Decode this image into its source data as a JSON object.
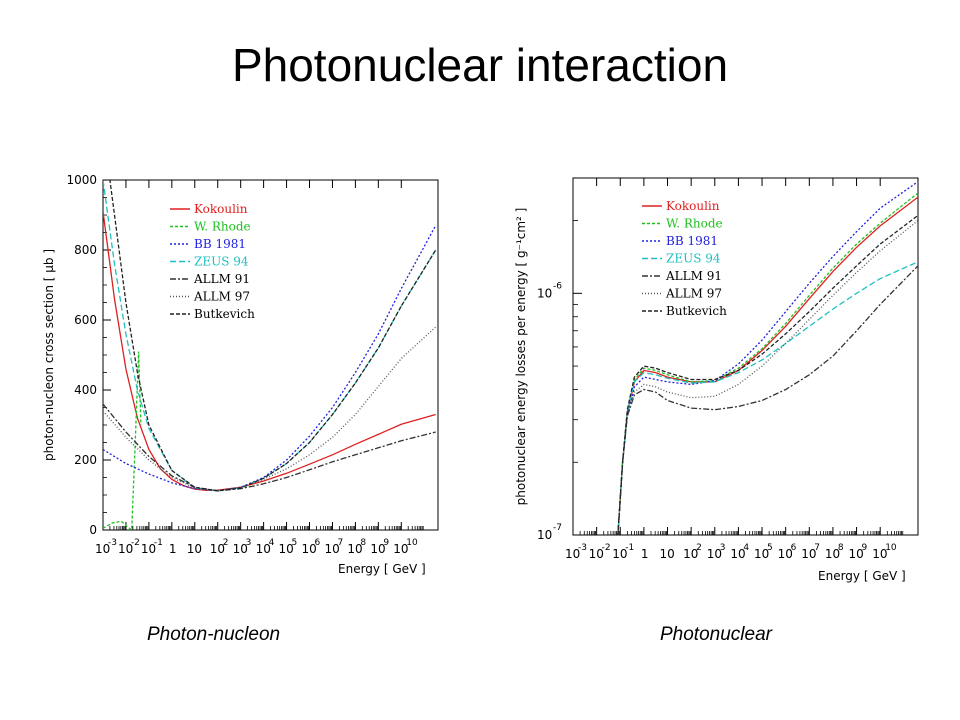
{
  "slide": {
    "title": "Photonuclear interaction",
    "captions": [
      "Photon-nucleon",
      "Photonuclear"
    ]
  },
  "chart_data": [
    {
      "type": "line",
      "title": "",
      "xlabel": "Energy [ GeV ]",
      "ylabel": "photon-nucleon cross section [ μb ]",
      "x_scale": "log",
      "xlim": [
        -3,
        11.6
      ],
      "ylim": [
        0,
        1000
      ],
      "grid": false,
      "legend_position": "top-left",
      "x_ticks": [
        "-3",
        "-2",
        "-1",
        "0",
        "1",
        "2",
        "3",
        "4",
        "5",
        "6",
        "7",
        "8",
        "9",
        "10"
      ],
      "y_ticks": [
        "0",
        "200",
        "400",
        "600",
        "800",
        "1000"
      ],
      "series": [
        {
          "name": "Kokoulin",
          "color": "#e02020",
          "dash": "",
          "x": [
            -3,
            -2.5,
            -2,
            -1.5,
            -1,
            -0.5,
            0,
            0.5,
            1,
            1.5,
            2,
            3,
            4,
            5,
            6,
            7,
            8,
            9,
            10,
            11.5
          ],
          "y": [
            910,
            660,
            460,
            320,
            230,
            175,
            145,
            127,
            117,
            113,
            114,
            122,
            140,
            162,
            188,
            215,
            245,
            273,
            302,
            330
          ]
        },
        {
          "name": "W. Rhode",
          "color": "#20c020",
          "dash": "3,2",
          "x": [
            -3,
            -2.6,
            -2.2,
            -1.95,
            -1.75,
            -1.6,
            -1.45,
            -1.35
          ],
          "y": [
            5,
            20,
            25,
            10,
            0,
            240,
            510,
            300
          ]
        },
        {
          "name": "BB 1981",
          "color": "#2020e0",
          "dash": "2,2",
          "x": [
            -3,
            -2,
            -1,
            0,
            1,
            2,
            3,
            4,
            5,
            6,
            7,
            8,
            9,
            10,
            11.5
          ],
          "y": [
            230,
            190,
            160,
            135,
            118,
            112,
            122,
            150,
            200,
            268,
            350,
            450,
            560,
            690,
            870
          ]
        },
        {
          "name": "ZEUS 94",
          "color": "#20c0c0",
          "dash": "6,3",
          "x": [
            -3,
            -2.5,
            -2,
            -1.5,
            -1,
            0,
            1,
            2,
            3,
            4,
            5,
            6,
            7,
            8,
            9,
            10,
            11.5
          ],
          "y": [
            1000,
            760,
            560,
            400,
            290,
            170,
            120,
            112,
            120,
            148,
            190,
            250,
            330,
            420,
            520,
            640,
            800
          ]
        },
        {
          "name": "ALLM 91",
          "color": "#333333",
          "dash": "6,2,2,2",
          "x": [
            -3,
            -2,
            -1,
            0,
            1,
            2,
            3,
            4,
            5,
            6,
            7,
            8,
            9,
            10,
            11.5
          ],
          "y": [
            360,
            280,
            210,
            155,
            122,
            112,
            118,
            132,
            150,
            172,
            195,
            215,
            235,
            255,
            280
          ]
        },
        {
          "name": "ALLM 97",
          "color": "#555555",
          "dash": "1,2",
          "x": [
            -3,
            -2,
            -1,
            0,
            1,
            2,
            3,
            4,
            5,
            6,
            7,
            8,
            9,
            10,
            11.5
          ],
          "y": [
            340,
            265,
            200,
            150,
            120,
            112,
            122,
            145,
            175,
            215,
            265,
            330,
            410,
            490,
            580
          ]
        },
        {
          "name": "Butkevich",
          "color": "#222222",
          "dash": "4,2",
          "x": [
            -3,
            -2.7,
            -2.5,
            -2,
            -1.5,
            -1,
            0,
            1,
            2,
            3,
            4,
            5,
            6,
            7,
            8,
            9,
            10,
            11.5
          ],
          "y": [
            1000,
            1000,
            900,
            650,
            450,
            300,
            170,
            122,
            112,
            120,
            148,
            190,
            250,
            330,
            420,
            520,
            640,
            800
          ]
        }
      ]
    },
    {
      "type": "line",
      "title": "",
      "xlabel": "Energy [ GeV ]",
      "ylabel": "photonuclear energy losses per energy [ g⁻¹cm² ]",
      "x_scale": "log",
      "y_scale": "log",
      "xlim": [
        -3,
        11.6
      ],
      "ylim": [
        1e-07,
        3e-06
      ],
      "grid": false,
      "legend_position": "top-left",
      "x_ticks": [
        "-3",
        "-2",
        "-1",
        "0",
        "1",
        "2",
        "3",
        "4",
        "5",
        "6",
        "7",
        "8",
        "9",
        "10"
      ],
      "y_ticks": [
        "10⁻⁷",
        "10⁻⁶"
      ],
      "series": [
        {
          "name": "Kokoulin",
          "color": "#e02020",
          "dash": "",
          "x": [
            -1.1,
            -0.9,
            -0.7,
            -0.4,
            0,
            0.5,
            1,
            2,
            3,
            4,
            5,
            6,
            7,
            8,
            9,
            10,
            11.6
          ],
          "y": [
            1e-07,
            2e-07,
            3.2e-07,
            4.3e-07,
            4.8e-07,
            4.7e-07,
            4.5e-07,
            4.3e-07,
            4.3e-07,
            4.8e-07,
            5.8e-07,
            7.3e-07,
            9.5e-07,
            1.23e-06,
            1.55e-06,
            1.9e-06,
            2.5e-06
          ]
        },
        {
          "name": "W. Rhode",
          "color": "#20c020",
          "dash": "3,2",
          "x": [
            -1.1,
            -0.9,
            -0.7,
            -0.4,
            0,
            0.5,
            1,
            2,
            3,
            4,
            5,
            6,
            7,
            8,
            9,
            10,
            11.6
          ],
          "y": [
            1e-07,
            2e-07,
            3.2e-07,
            4.4e-07,
            4.9e-07,
            4.8e-07,
            4.6e-07,
            4.3e-07,
            4.35e-07,
            4.9e-07,
            5.9e-07,
            7.5e-07,
            9.8e-07,
            1.27e-06,
            1.6e-06,
            1.95e-06,
            2.6e-06
          ]
        },
        {
          "name": "BB 1981",
          "color": "#2020e0",
          "dash": "2,2",
          "x": [
            -1.1,
            -0.9,
            -0.7,
            -0.4,
            0,
            0.5,
            1,
            2,
            3,
            4,
            5,
            6,
            7,
            8,
            9,
            10,
            11.6
          ],
          "y": [
            1e-07,
            2e-07,
            3.1e-07,
            4.1e-07,
            4.5e-07,
            4.4e-07,
            4.3e-07,
            4.2e-07,
            4.35e-07,
            5.1e-07,
            6.4e-07,
            8.4e-07,
            1.1e-06,
            1.42e-06,
            1.8e-06,
            2.25e-06,
            2.9e-06
          ]
        },
        {
          "name": "ZEUS 94",
          "color": "#20c0c0",
          "dash": "6,3",
          "x": [
            -1.1,
            -0.9,
            -0.7,
            -0.4,
            0,
            0.5,
            1,
            2,
            3,
            4,
            5,
            6,
            7,
            8,
            9,
            10,
            11.6
          ],
          "y": [
            1e-07,
            2e-07,
            3.2e-07,
            4.3e-07,
            4.7e-07,
            4.6e-07,
            4.45e-07,
            4.25e-07,
            4.3e-07,
            4.7e-07,
            5.3e-07,
            6.2e-07,
            7.3e-07,
            8.6e-07,
            1e-06,
            1.15e-06,
            1.35e-06
          ]
        },
        {
          "name": "ALLM 91",
          "color": "#333333",
          "dash": "6,2,2,2",
          "x": [
            -1.1,
            -0.9,
            -0.7,
            -0.4,
            0,
            0.5,
            1,
            2,
            3,
            4,
            5,
            6,
            7,
            8,
            9,
            10,
            11.6
          ],
          "y": [
            1e-07,
            2e-07,
            3.1e-07,
            3.8e-07,
            4e-07,
            3.9e-07,
            3.6e-07,
            3.35e-07,
            3.3e-07,
            3.4e-07,
            3.6e-07,
            4e-07,
            4.6e-07,
            5.5e-07,
            7e-07,
            9e-07,
            1.3e-06
          ]
        },
        {
          "name": "ALLM 97",
          "color": "#555555",
          "dash": "1,2",
          "x": [
            -1.1,
            -0.9,
            -0.7,
            -0.4,
            0,
            0.5,
            1,
            2,
            3,
            4,
            5,
            6,
            7,
            8,
            9,
            10,
            11.6
          ],
          "y": [
            1e-07,
            2e-07,
            3.1e-07,
            3.9e-07,
            4.2e-07,
            4.1e-07,
            3.9e-07,
            3.7e-07,
            3.75e-07,
            4.2e-07,
            5e-07,
            6.2e-07,
            7.8e-07,
            9.8e-07,
            1.22e-06,
            1.5e-06,
            2e-06
          ]
        },
        {
          "name": "Butkevich",
          "color": "#222222",
          "dash": "4,2",
          "x": [
            -1.1,
            -0.9,
            -0.7,
            -0.4,
            0,
            0.5,
            1,
            2,
            3,
            4,
            5,
            6,
            7,
            8,
            9,
            10,
            11.6
          ],
          "y": [
            1e-07,
            2e-07,
            3.3e-07,
            4.5e-07,
            5e-07,
            4.9e-07,
            4.7e-07,
            4.4e-07,
            4.4e-07,
            4.8e-07,
            5.6e-07,
            6.8e-07,
            8.4e-07,
            1.05e-06,
            1.3e-06,
            1.6e-06,
            2.1e-06
          ]
        }
      ]
    }
  ]
}
